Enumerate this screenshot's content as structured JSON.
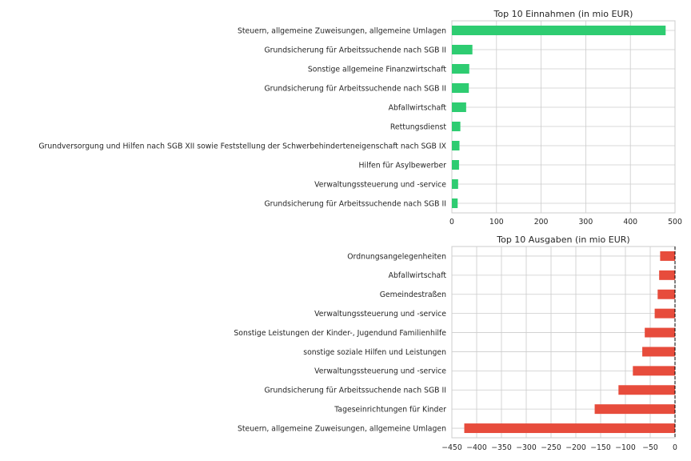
{
  "chart_data": [
    {
      "type": "bar",
      "orientation": "horizontal",
      "title": "Top 10 Einnahmen (in mio EUR)",
      "xlabel": "",
      "ylabel": "",
      "grid": true,
      "xlim": [
        0,
        500
      ],
      "xticks": [
        0,
        100,
        200,
        300,
        400,
        500
      ],
      "xtick_labels": [
        "0",
        "100",
        "200",
        "300",
        "400",
        "500"
      ],
      "color": "#2ecc71",
      "categories": [
        "Steuern, allgemeine Zuweisungen, allgemeine Umlagen",
        "Grundsicherung für Arbeitssuchende nach SGB II",
        "Sonstige allgemeine Finanzwirtschaft",
        "Grundsicherung für Arbeitssuchende nach SGB II",
        "Abfallwirtschaft",
        "Rettungsdienst",
        "Grundversorgung und Hilfen nach SGB XII sowie Feststellung der Schwerbehinderteneigenschaft nach SGB IX",
        "Hilfen für Asylbewerber",
        "Verwaltungssteuerung und -service",
        "Grundsicherung für Arbeitssuchende nach SGB II"
      ],
      "values": [
        479,
        46,
        39,
        38,
        32,
        19,
        17,
        16,
        14,
        13
      ]
    },
    {
      "type": "bar",
      "orientation": "horizontal",
      "title": "Top 10 Ausgaben (in mio EUR)",
      "xlabel": "",
      "ylabel": "",
      "grid": true,
      "xlim": [
        -450,
        0
      ],
      "xticks": [
        -450,
        -400,
        -350,
        -300,
        -250,
        -200,
        -150,
        -100,
        -50,
        0
      ],
      "xtick_labels": [
        "−450",
        "−400",
        "−350",
        "−300",
        "−250",
        "−200",
        "−150",
        "−100",
        "−50",
        "0"
      ],
      "zero_line": true,
      "color": "#e74c3c",
      "categories": [
        "Ordnungsangelegenheiten",
        "Abfallwirtschaft",
        "Gemeindestraßen",
        "Verwaltungssteuerung und -service",
        "Sonstige Leistungen der Kinder-, Jugendund Familienhilfe",
        "sonstige soziale Hilfen und Leistungen",
        "Verwaltungssteuerung und -service",
        "Grundsicherung für Arbeitssuchende nach SGB II",
        "Tageseinrichtungen für Kinder",
        "Steuern, allgemeine Zuweisungen, allgemeine Umlagen"
      ],
      "values": [
        -30,
        -32,
        -35,
        -41,
        -61,
        -66,
        -85,
        -114,
        -162,
        -425
      ]
    }
  ]
}
